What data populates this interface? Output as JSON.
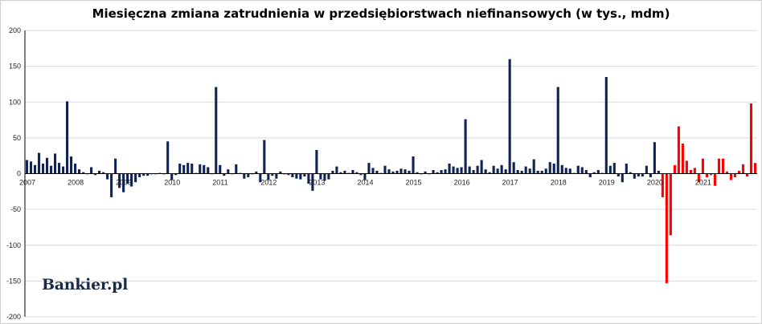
{
  "chart_data": {
    "type": "bar",
    "title": "Miesięczna zmiana zatrudnienia w przedsiębiorstwach niefinansowych (w tys., mdm)",
    "xlabel": "",
    "ylabel": "",
    "ylim": [
      -200,
      200
    ],
    "y_ticks": [
      "200",
      "150",
      "100",
      "50",
      "0",
      "-50",
      "-100",
      "-150",
      "-200"
    ],
    "grid": "horizontal",
    "legend": "none",
    "start": "2007-01",
    "x_ticks": [
      "2007",
      "2008",
      "2009",
      "2010",
      "2011",
      "2012",
      "2013",
      "2014",
      "2015",
      "2016",
      "2017",
      "2018",
      "2019",
      "2020",
      "2021"
    ],
    "colors": {
      "default": "#0f2356",
      "highlight": "#ff0000",
      "grid": "#d9d9d9",
      "axis": "#000000"
    },
    "highlight_note": "red bars from 2020-03 onward",
    "highlight_from_index": 158,
    "values": [
      19,
      17,
      12,
      29,
      14,
      22,
      11,
      28,
      15,
      10,
      101,
      24,
      14,
      6,
      2,
      0,
      9,
      -2,
      4,
      2,
      -8,
      -33,
      21,
      -20,
      -26,
      -14,
      -18,
      -12,
      -5,
      -3,
      -3,
      0,
      0,
      1,
      -1,
      45,
      -9,
      -2,
      14,
      12,
      15,
      14,
      1,
      13,
      12,
      9,
      0,
      121,
      12,
      -3,
      6,
      0,
      13,
      1,
      -7,
      -5,
      -1,
      3,
      -12,
      47,
      -9,
      -3,
      -7,
      3,
      -1,
      -2,
      -5,
      -7,
      -8,
      -4,
      -14,
      -24,
      33,
      -8,
      -10,
      -8,
      4,
      10,
      2,
      4,
      1,
      5,
      2,
      -2,
      -9,
      15,
      8,
      4,
      1,
      11,
      6,
      3,
      4,
      7,
      6,
      4,
      24,
      2,
      -1,
      3,
      0,
      5,
      2,
      5,
      6,
      14,
      10,
      8,
      9,
      76,
      10,
      5,
      11,
      19,
      6,
      2,
      11,
      7,
      12,
      6,
      160,
      16,
      5,
      4,
      10,
      7,
      20,
      4,
      4,
      7,
      16,
      14,
      121,
      12,
      8,
      7,
      1,
      11,
      9,
      5,
      -5,
      2,
      5,
      1,
      135,
      11,
      15,
      -4,
      -12,
      14,
      2,
      -7,
      -4,
      -4,
      11,
      -5,
      44,
      4,
      -33,
      -153,
      -86,
      12,
      66,
      42,
      18,
      5,
      8,
      -12,
      21,
      -5,
      -2,
      -17,
      21,
      21,
      3,
      -9,
      -5,
      4,
      13,
      -4,
      98,
      15
    ]
  },
  "logo_text": "Bankier.pl"
}
